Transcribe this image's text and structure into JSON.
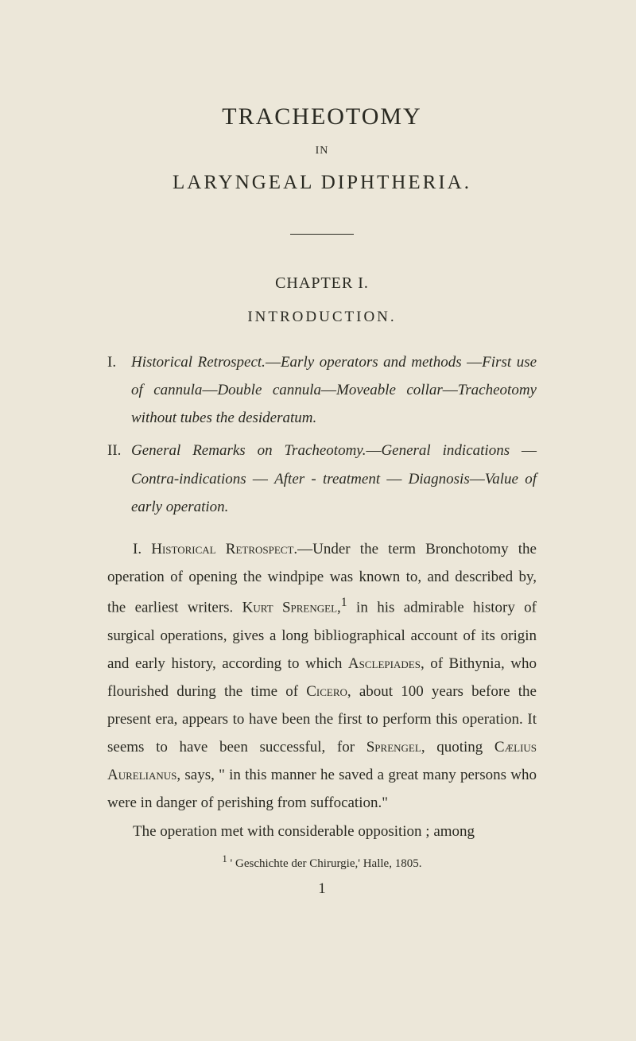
{
  "main_title": "TRACHEOTOMY",
  "in_word": "IN",
  "subtitle": "LARYNGEAL DIPHTHERIA.",
  "chapter": "CHAPTER I.",
  "section_heading": "INTRODUCTION.",
  "outline": {
    "i": {
      "num": "I.",
      "text_parts": [
        {
          "style": "italic",
          "text": "Historical Retrospect."
        },
        {
          "style": "normal",
          "text": "—"
        },
        {
          "style": "italic",
          "text": "Early operators and methods"
        },
        {
          "style": "normal",
          "text": " —"
        },
        {
          "style": "italic",
          "text": "First use of cannula"
        },
        {
          "style": "normal",
          "text": "—"
        },
        {
          "style": "italic",
          "text": "Double cannula"
        },
        {
          "style": "normal",
          "text": "—"
        },
        {
          "style": "italic",
          "text": "Moveable collar"
        },
        {
          "style": "normal",
          "text": "—"
        },
        {
          "style": "italic",
          "text": "Tracheotomy without tubes the desideratum."
        }
      ]
    },
    "ii": {
      "num": "II.",
      "text_parts": [
        {
          "style": "italic",
          "text": "General Remarks on Tracheotomy."
        },
        {
          "style": "normal",
          "text": "—"
        },
        {
          "style": "italic",
          "text": "General indica­tions"
        },
        {
          "style": "normal",
          "text": " — "
        },
        {
          "style": "italic",
          "text": "Contra-indications"
        },
        {
          "style": "normal",
          "text": " — "
        },
        {
          "style": "italic",
          "text": "After - treatment"
        },
        {
          "style": "normal",
          "text": " — "
        },
        {
          "style": "italic",
          "text": "Dia­gnosis"
        },
        {
          "style": "normal",
          "text": "—"
        },
        {
          "style": "italic",
          "text": "Value of early operation."
        }
      ]
    }
  },
  "body_para1_prefix": "I. ",
  "body_para1_smallcaps1": "Historical Retrospect.",
  "body_para1_mid1": "—Under the term Broncho­tomy the operation of opening the windpipe was known to, and described by, the earliest writers. ",
  "body_para1_smallcaps2": "Kurt Spren­gel",
  "body_para1_mid2": ",",
  "body_para1_sup": "1",
  "body_para1_mid3": " in his admirable history of surgical operations, gives a long bibliographical account of its origin and early history, according to which ",
  "body_para1_smallcaps3": "Asclepiades",
  "body_para1_mid4": ", of Bithynia, who flourished during the time of ",
  "body_para1_smallcaps4": "Cicero",
  "body_para1_mid5": ", about 100 years before the present era, appears to have been the first to perform this operation. It seems to have been successful, for ",
  "body_para1_smallcaps5": "Sprengel",
  "body_para1_mid6": ", quoting ",
  "body_para1_smallcaps6": "Cælius Aurelianus",
  "body_para1_mid7": ", says, \" in this manner he saved a great many persons who were in danger of perishing from suffocation.\"",
  "body_para2": "The operation met with considerable opposition ; among",
  "footnote_marker": "1",
  "footnote_text": " ' Geschichte der Chirurgie,' Halle, 1805.",
  "page_num": "1"
}
